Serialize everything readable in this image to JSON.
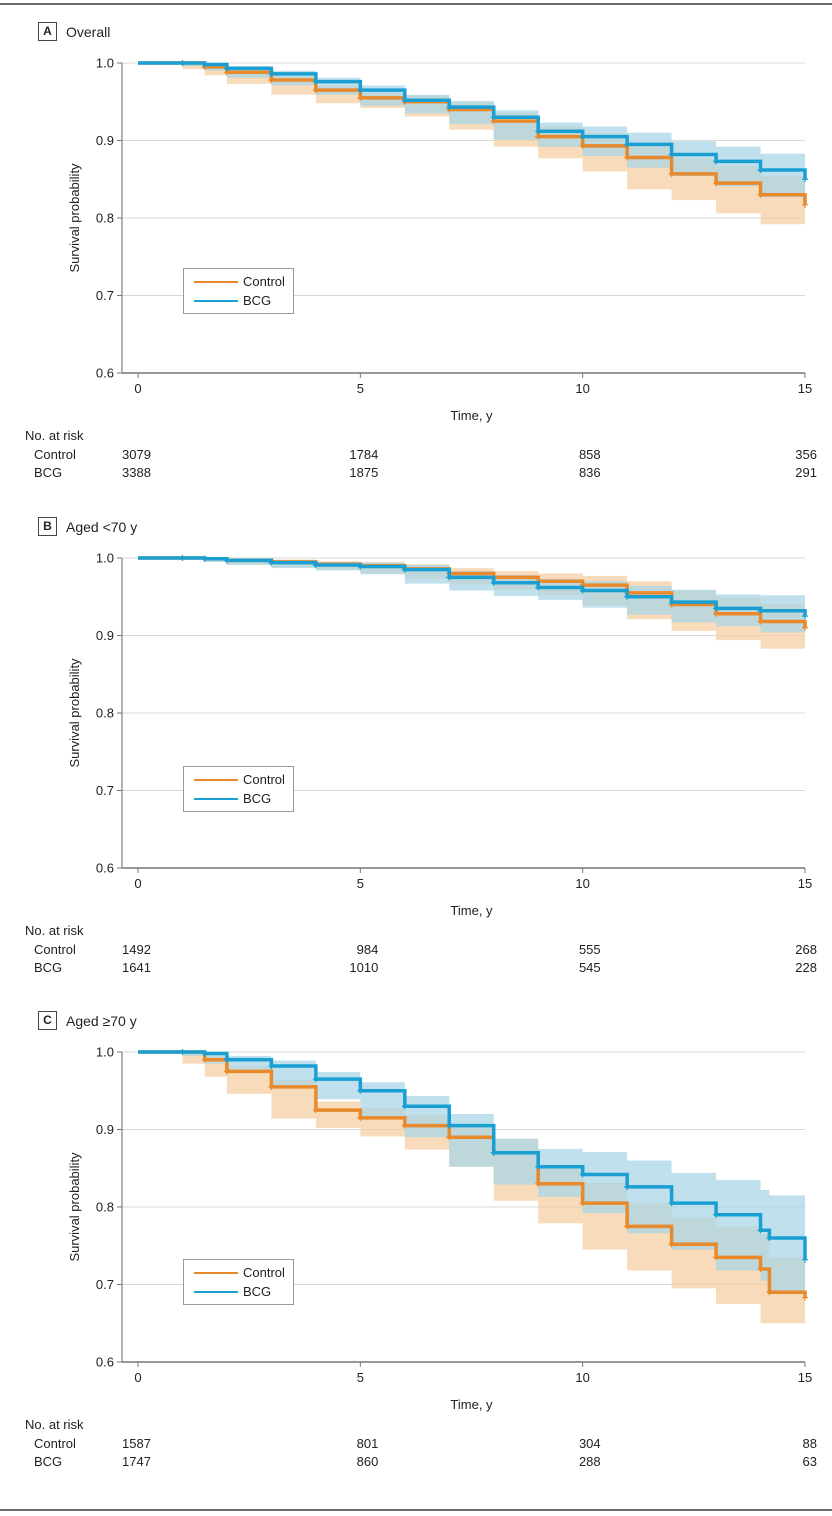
{
  "colors": {
    "control": "#e8892c",
    "bcg": "#1a9fd3",
    "control_ci": "#f6cfa3",
    "bcg_ci": "#a9d5e6",
    "grid": "#d8d8d8",
    "axis": "#9a9a9a"
  },
  "risk_header": "No. at risk",
  "chart_data": [
    {
      "type": "line",
      "panel_letter": "A",
      "title": "Overall",
      "xlabel": "Time, y",
      "ylabel": "Survival probability",
      "xlim": [
        0,
        15
      ],
      "ylim": [
        0.6,
        1.0
      ],
      "xticks": [
        "0",
        "5",
        "10",
        "15"
      ],
      "yticks": [
        "0.6",
        "0.7",
        "0.8",
        "0.9",
        "1.0"
      ],
      "grid": true,
      "legend": {
        "placement": "lower-left",
        "entries": [
          "Control",
          "BCG"
        ]
      },
      "x": [
        0,
        1,
        1.5,
        2,
        3,
        4,
        5,
        6,
        7,
        8,
        9,
        10,
        11,
        12,
        13,
        14,
        15
      ],
      "series": [
        {
          "name": "Control",
          "values": [
            1.0,
            1.0,
            0.995,
            0.988,
            0.978,
            0.965,
            0.955,
            0.95,
            0.94,
            0.925,
            0.905,
            0.893,
            0.878,
            0.857,
            0.845,
            0.83,
            0.817
          ],
          "ci_low": [
            1.0,
            1.0,
            0.992,
            0.984,
            0.973,
            0.959,
            0.948,
            0.942,
            0.931,
            0.914,
            0.892,
            0.877,
            0.86,
            0.837,
            0.823,
            0.806,
            0.792
          ],
          "ci_high": [
            1.0,
            1.0,
            0.998,
            0.992,
            0.983,
            0.971,
            0.962,
            0.958,
            0.949,
            0.936,
            0.918,
            0.909,
            0.896,
            0.877,
            0.867,
            0.854,
            0.842
          ]
        },
        {
          "name": "BCG",
          "values": [
            1.0,
            1.0,
            0.998,
            0.993,
            0.986,
            0.976,
            0.965,
            0.952,
            0.943,
            0.93,
            0.912,
            0.905,
            0.895,
            0.882,
            0.873,
            0.862,
            0.85
          ],
          "ci_low": [
            1.0,
            1.0,
            0.996,
            0.99,
            0.981,
            0.971,
            0.959,
            0.945,
            0.935,
            0.921,
            0.901,
            0.892,
            0.88,
            0.865,
            0.854,
            0.841,
            0.827
          ],
          "ci_high": [
            1.0,
            1.0,
            1.0,
            0.996,
            0.99,
            0.981,
            0.971,
            0.959,
            0.951,
            0.939,
            0.923,
            0.918,
            0.91,
            0.899,
            0.892,
            0.883,
            0.873
          ]
        }
      ],
      "at_risk": {
        "times": [
          "0",
          "5",
          "10",
          "15"
        ],
        "rows": [
          {
            "name": "Control",
            "values": [
              "3079",
              "1784",
              "858",
              "356"
            ]
          },
          {
            "name": "BCG",
            "values": [
              "3388",
              "1875",
              "836",
              "291"
            ]
          }
        ]
      }
    },
    {
      "type": "line",
      "panel_letter": "B",
      "title": "Aged <70 y",
      "xlabel": "Time, y",
      "ylabel": "Survival probability",
      "xlim": [
        0,
        15
      ],
      "ylim": [
        0.6,
        1.0
      ],
      "xticks": [
        "0",
        "5",
        "10",
        "15"
      ],
      "yticks": [
        "0.6",
        "0.7",
        "0.8",
        "0.9",
        "1.0"
      ],
      "grid": true,
      "legend": {
        "placement": "lower-left",
        "entries": [
          "Control",
          "BCG"
        ]
      },
      "x": [
        0,
        1,
        1.5,
        2,
        3,
        4,
        5,
        6,
        7,
        8,
        9,
        10,
        11,
        12,
        13,
        14,
        15
      ],
      "series": [
        {
          "name": "Control",
          "values": [
            1.0,
            1.0,
            0.999,
            0.997,
            0.995,
            0.992,
            0.99,
            0.986,
            0.98,
            0.975,
            0.97,
            0.965,
            0.955,
            0.94,
            0.928,
            0.918,
            0.91
          ],
          "ci_low": [
            1.0,
            1.0,
            0.998,
            0.995,
            0.992,
            0.988,
            0.985,
            0.98,
            0.973,
            0.966,
            0.959,
            0.952,
            0.939,
            0.921,
            0.906,
            0.894,
            0.883
          ],
          "ci_high": [
            1.0,
            1.0,
            1.0,
            0.999,
            0.998,
            0.996,
            0.995,
            0.992,
            0.987,
            0.983,
            0.98,
            0.977,
            0.97,
            0.958,
            0.949,
            0.941,
            0.936
          ]
        },
        {
          "name": "BCG",
          "values": [
            1.0,
            1.0,
            0.999,
            0.997,
            0.994,
            0.991,
            0.989,
            0.985,
            0.975,
            0.968,
            0.962,
            0.958,
            0.95,
            0.943,
            0.935,
            0.932,
            0.925
          ],
          "ci_low": [
            1.0,
            1.0,
            0.998,
            0.995,
            0.991,
            0.987,
            0.984,
            0.979,
            0.967,
            0.958,
            0.951,
            0.946,
            0.936,
            0.927,
            0.917,
            0.912,
            0.904
          ],
          "ci_high": [
            1.0,
            1.0,
            1.0,
            0.999,
            0.997,
            0.995,
            0.994,
            0.991,
            0.983,
            0.978,
            0.973,
            0.97,
            0.964,
            0.959,
            0.953,
            0.952,
            0.946
          ]
        }
      ],
      "at_risk": {
        "times": [
          "0",
          "5",
          "10",
          "15"
        ],
        "rows": [
          {
            "name": "Control",
            "values": [
              "1492",
              "984",
              "555",
              "268"
            ]
          },
          {
            "name": "BCG",
            "values": [
              "1641",
              "1010",
              "545",
              "228"
            ]
          }
        ]
      }
    },
    {
      "type": "line",
      "panel_letter": "C",
      "title": "Aged ≥70 y",
      "xlabel": "Time, y",
      "ylabel": "Survival probability",
      "xlim": [
        0,
        15
      ],
      "ylim": [
        0.6,
        1.0
      ],
      "xticks": [
        "0",
        "5",
        "10",
        "15"
      ],
      "yticks": [
        "0.6",
        "0.7",
        "0.8",
        "0.9",
        "1.0"
      ],
      "grid": true,
      "legend": {
        "placement": "lower-left",
        "entries": [
          "Control",
          "BCG"
        ]
      },
      "x": [
        0,
        1,
        1.5,
        2,
        3,
        4,
        5,
        6,
        7,
        8,
        9,
        10,
        11,
        12,
        13,
        14,
        14.2,
        15
      ],
      "series": [
        {
          "name": "Control",
          "values": [
            1.0,
            1.0,
            0.99,
            0.975,
            0.955,
            0.925,
            0.915,
            0.905,
            0.89,
            0.87,
            0.83,
            0.805,
            0.775,
            0.752,
            0.735,
            0.72,
            0.69,
            0.683
          ],
          "ci_low": [
            1.0,
            1.0,
            0.985,
            0.968,
            0.946,
            0.914,
            0.902,
            0.891,
            0.874,
            0.852,
            0.808,
            0.779,
            0.745,
            0.718,
            0.695,
            0.675,
            0.65,
            0.65
          ],
          "ci_high": [
            1.0,
            1.0,
            0.995,
            0.982,
            0.964,
            0.936,
            0.928,
            0.919,
            0.906,
            0.888,
            0.852,
            0.831,
            0.805,
            0.786,
            0.775,
            0.765,
            0.735,
            0.73
          ]
        },
        {
          "name": "BCG",
          "values": [
            1.0,
            1.0,
            0.998,
            0.99,
            0.982,
            0.965,
            0.95,
            0.93,
            0.905,
            0.87,
            0.852,
            0.842,
            0.826,
            0.805,
            0.79,
            0.77,
            0.76,
            0.732
          ],
          "ci_low": [
            1.0,
            1.0,
            0.995,
            0.985,
            0.975,
            0.956,
            0.939,
            0.917,
            0.89,
            0.852,
            0.829,
            0.813,
            0.792,
            0.766,
            0.745,
            0.718,
            0.705,
            0.69
          ],
          "ci_high": [
            1.0,
            1.0,
            1.0,
            0.995,
            0.989,
            0.974,
            0.961,
            0.943,
            0.92,
            0.888,
            0.875,
            0.871,
            0.86,
            0.844,
            0.835,
            0.822,
            0.815,
            0.79
          ]
        }
      ],
      "at_risk": {
        "times": [
          "0",
          "5",
          "10",
          "15"
        ],
        "rows": [
          {
            "name": "Control",
            "values": [
              "1587",
              "801",
              "304",
              "88"
            ]
          },
          {
            "name": "BCG",
            "values": [
              "1747",
              "860",
              "288",
              "63"
            ]
          }
        ]
      }
    }
  ]
}
